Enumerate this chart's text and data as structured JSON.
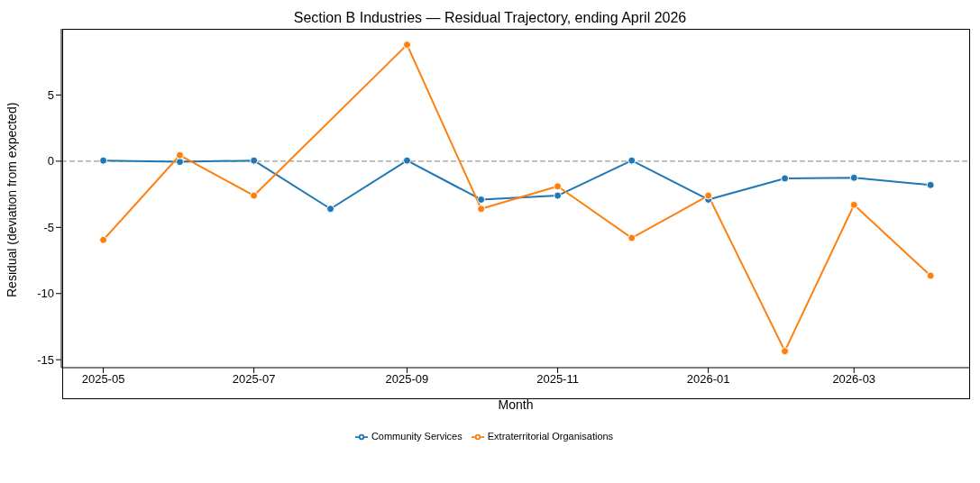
{
  "chart_data": {
    "type": "line",
    "title": "Section B Industries — Residual Trajectory, ending April 2026",
    "xlabel": "Month",
    "ylabel": "Residual (deviation from expected)",
    "x": [
      "2025-05",
      "2025-06",
      "2025-07",
      "2025-08",
      "2025-09",
      "2025-10",
      "2025-11",
      "2025-12",
      "2026-01",
      "2026-02",
      "2026-03",
      "2026-04"
    ],
    "series": [
      {
        "name": "Community Services",
        "color": "#1f77b4",
        "values": [
          0.05,
          -0.05,
          0.05,
          -3.6,
          0.05,
          -2.9,
          -2.6,
          0.05,
          -2.9,
          -1.3,
          -1.25,
          -1.8
        ]
      },
      {
        "name": "Extraterritorial Organisations",
        "color": "#ff7f0e",
        "values": [
          -5.95,
          0.45,
          -2.6,
          null,
          8.8,
          -3.6,
          -1.9,
          -5.8,
          -2.6,
          -14.35,
          -3.3,
          -8.65
        ]
      }
    ],
    "xlim": [
      "2025-04-14",
      "2026-04-17"
    ],
    "xticks": [
      "2025-05",
      "2025-07",
      "2025-09",
      "2025-11",
      "2026-01",
      "2026-03"
    ],
    "ylim": [
      -15.6,
      10
    ],
    "yticks": [
      -15,
      -10,
      -5,
      0,
      5
    ],
    "ref_lines": [
      {
        "axis": "y",
        "value": 0,
        "color": "#808080",
        "line_style": "dashed"
      }
    ],
    "grid": false,
    "legend": "bottom",
    "marker": "circle",
    "line_style": "solid"
  }
}
